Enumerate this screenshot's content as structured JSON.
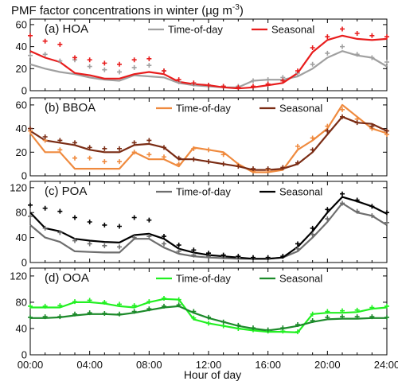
{
  "chart_data": {
    "type": "line",
    "title": "PMF factor concentrations in winter (µg m",
    "title_sup": "-3",
    "title_close": ")",
    "xlabel": "Hour of day",
    "x_ticks": [
      "00:00",
      "04:00",
      "08:00",
      "12:00",
      "16:00",
      "20:00",
      "24:00"
    ],
    "x_tick_values": [
      0,
      4,
      8,
      12,
      16,
      20,
      24
    ],
    "xlim": [
      0,
      24
    ],
    "x": [
      0,
      1,
      2,
      3,
      4,
      5,
      6,
      7,
      8,
      9,
      10,
      11,
      12,
      13,
      14,
      15,
      16,
      17,
      18,
      19,
      20,
      21,
      22,
      23,
      24
    ],
    "legend_labels": [
      "Time-of-day",
      "Seasonal"
    ],
    "panels": [
      {
        "label": "(a) HOA",
        "ylim": [
          0,
          65
        ],
        "y_ticks": [
          0,
          20,
          40,
          60
        ],
        "colors": {
          "time": "#a0a0a0",
          "seasonal": "#e81c1c"
        },
        "series": [
          {
            "name": "Time-of-day",
            "line": [
              24,
              20,
              17,
              15,
              12,
              10,
              9,
              14,
              13,
              12,
              7,
              5,
              4,
              3,
              3,
              9,
              10,
              10,
              13,
              20,
              30,
              36,
              32,
              30,
              22
            ],
            "points": [
              32,
              33,
              27,
              28,
              22,
              19,
              17,
              21,
              23,
              18,
              8,
              6,
              5,
              4,
              4,
              9,
              10,
              12,
              16,
              24,
              34,
              40,
              33,
              30,
              26
            ]
          },
          {
            "name": "Seasonal",
            "line": [
              36,
              30,
              26,
              16,
              14,
              11,
              11,
              15,
              17,
              15,
              8,
              6,
              5,
              3,
              2,
              3,
              5,
              7,
              16,
              35,
              46,
              50,
              47,
              46,
              47
            ],
            "points": [
              50,
              45,
              42,
              30,
              28,
              25,
              24,
              28,
              29,
              18,
              10,
              7,
              5,
              4,
              3,
              4,
              6,
              9,
              18,
              39,
              49,
              56,
              52,
              50,
              49
            ]
          }
        ]
      },
      {
        "label": "(b) BBOA",
        "ylim": [
          0,
          66
        ],
        "y_ticks": [
          0,
          20,
          40,
          60
        ],
        "colors": {
          "time": "#ef8a3e",
          "seasonal": "#7a2c14"
        },
        "series": [
          {
            "name": "Time-of-day",
            "line": [
              36,
              20,
              20,
              6,
              6,
              6,
              6,
              20,
              14,
              14,
              8,
              24,
              22,
              20,
              10,
              3,
              3,
              5,
              22,
              30,
              40,
              60,
              50,
              40,
              36
            ],
            "points": [
              38,
              30,
              22,
              15,
              15,
              12,
              12,
              20,
              18,
              16,
              10,
              23,
              22,
              18,
              9,
              4,
              5,
              7,
              25,
              32,
              42,
              56,
              48,
              40,
              35
            ]
          },
          {
            "name": "Seasonal",
            "line": [
              38,
              30,
              28,
              26,
              22,
              20,
              20,
              26,
              27,
              24,
              14,
              14,
              12,
              10,
              8,
              5,
              5,
              6,
              10,
              20,
              35,
              50,
              45,
              44,
              38
            ],
            "points": [
              40,
              33,
              30,
              28,
              24,
              23,
              23,
              28,
              30,
              24,
              15,
              14,
              12,
              10,
              8,
              6,
              6,
              7,
              11,
              22,
              38,
              50,
              45,
              42,
              38
            ]
          }
        ]
      },
      {
        "label": "(c) POA",
        "ylim": [
          0,
          130
        ],
        "y_ticks": [
          0,
          40,
          80,
          120
        ],
        "colors": {
          "time": "#6e6e6e",
          "seasonal": "#000000"
        },
        "series": [
          {
            "name": "Time-of-day",
            "line": [
              60,
              40,
              33,
              18,
              17,
              16,
              16,
              38,
              38,
              24,
              14,
              10,
              8,
              7,
              6,
              6,
              6,
              8,
              18,
              40,
              65,
              95,
              80,
              75,
              60
            ],
            "points": [
              74,
              55,
              48,
              35,
              30,
              27,
              25,
              40,
              42,
              30,
              18,
              12,
              10,
              9,
              8,
              7,
              7,
              10,
              22,
              45,
              70,
              95,
              82,
              75,
              64
            ]
          },
          {
            "name": "Seasonal",
            "line": [
              80,
              55,
              50,
              38,
              35,
              33,
              32,
              44,
              46,
              38,
              22,
              16,
              12,
              10,
              8,
              6,
              6,
              8,
              25,
              50,
              80,
              105,
              98,
              90,
              78
            ],
            "points": [
              92,
              87,
              82,
              72,
              65,
              60,
              58,
              72,
              68,
              42,
              28,
              20,
              15,
              12,
              10,
              8,
              8,
              10,
              30,
              55,
              85,
              110,
              100,
              90,
              80
            ]
          }
        ]
      },
      {
        "label": "(d) OOA",
        "ylim": [
          0,
          132
        ],
        "y_ticks": [
          0,
          40,
          80,
          120
        ],
        "colors": {
          "time": "#22f022",
          "seasonal": "#1c8a2a"
        },
        "series": [
          {
            "name": "Time-of-day",
            "line": [
              72,
              72,
              72,
              80,
              80,
              78,
              74,
              72,
              80,
              85,
              84,
              54,
              48,
              44,
              40,
              37,
              35,
              35,
              34,
              62,
              64,
              64,
              65,
              70,
              72
            ],
            "points": [
              74,
              74,
              75,
              81,
              83,
              80,
              77,
              75,
              81,
              86,
              84,
              56,
              48,
              44,
              40,
              38,
              36,
              36,
              35,
              62,
              66,
              67,
              68,
              72,
              74
            ]
          },
          {
            "name": "Seasonal",
            "line": [
              56,
              56,
              57,
              60,
              62,
              62,
              61,
              64,
              68,
              72,
              74,
              64,
              56,
              50,
              44,
              40,
              37,
              40,
              44,
              50,
              54,
              55,
              55,
              56,
              56
            ],
            "points": [
              57,
              58,
              58,
              62,
              64,
              63,
              62,
              66,
              70,
              74,
              76,
              66,
              57,
              50,
              45,
              41,
              38,
              41,
              46,
              52,
              57,
              58,
              58,
              58,
              57
            ]
          }
        ]
      }
    ]
  }
}
